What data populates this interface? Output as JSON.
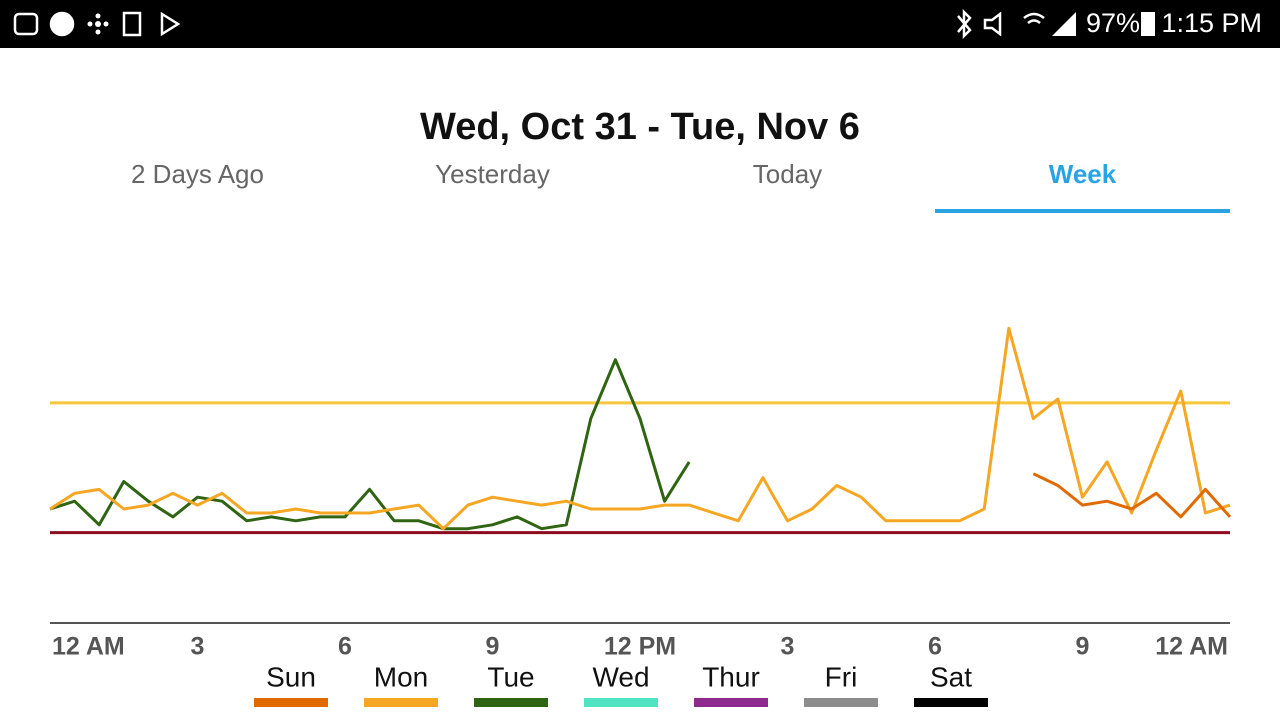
{
  "status_bar": {
    "battery": "97%",
    "time": "1:15 PM"
  },
  "header": {
    "title": "Wed, Oct 31 - Tue, Nov 6"
  },
  "tabs": [
    "2 Days Ago",
    "Yesterday",
    "Today",
    "Week"
  ],
  "active_tab": 3,
  "chart_data": {
    "type": "line",
    "x": [
      0,
      0.5,
      1,
      1.5,
      2,
      2.5,
      3,
      3.5,
      4,
      4.5,
      5,
      5.5,
      6,
      6.5,
      7,
      7.5,
      8,
      8.5,
      9,
      9.5,
      10,
      10.5,
      11,
      11.5,
      12,
      12.5,
      13,
      13.5,
      14,
      14.5,
      15,
      15.5,
      16,
      16.5,
      17,
      17.5,
      18,
      18.5,
      19,
      19.5,
      20,
      20.5,
      21,
      21.5,
      22,
      22.5,
      23,
      23.5,
      24
    ],
    "xlim": [
      0,
      24
    ],
    "xticks": [
      {
        "value": 0,
        "label": "12 AM"
      },
      3,
      6,
      9,
      {
        "value": 12,
        "label": "12 PM"
      },
      {
        "value": 15,
        "label": "3"
      },
      {
        "value": 18,
        "label": "6"
      },
      {
        "value": 21,
        "label": "9"
      },
      {
        "value": 24,
        "label": "12 AM"
      }
    ],
    "ylim": [
      0,
      100
    ],
    "reference_lines": [
      {
        "value": 56,
        "color": "#f7c63a"
      },
      {
        "value": 23,
        "color": "#8b0a1e"
      }
    ],
    "series": [
      {
        "name": "Sun",
        "color": "#e06a00",
        "values": [
          null,
          null,
          null,
          null,
          null,
          null,
          null,
          null,
          null,
          null,
          null,
          null,
          null,
          null,
          null,
          null,
          null,
          null,
          null,
          null,
          null,
          null,
          null,
          null,
          null,
          null,
          null,
          null,
          null,
          null,
          null,
          null,
          null,
          null,
          null,
          null,
          null,
          null,
          null,
          null,
          38,
          35,
          30,
          31,
          29,
          33,
          27,
          34,
          27
        ]
      },
      {
        "name": "Mon",
        "color": "#f5a623",
        "values": [
          29,
          33,
          34,
          29,
          30,
          33,
          30,
          33,
          28,
          28,
          29,
          28,
          28,
          28,
          29,
          30,
          24,
          30,
          32,
          31,
          30,
          31,
          29,
          29,
          29,
          30,
          30,
          28,
          26,
          37,
          26,
          29,
          35,
          32,
          26,
          26,
          26,
          26,
          29,
          75,
          52,
          57,
          32,
          41,
          28,
          44,
          59,
          28,
          30
        ]
      },
      {
        "name": "Tue",
        "color": "#2f6512",
        "values": [
          29,
          31,
          25,
          36,
          31,
          27,
          32,
          31,
          26,
          27,
          26,
          27,
          27,
          34,
          26,
          26,
          24,
          24,
          25,
          27,
          24,
          25,
          52,
          67,
          52,
          31,
          41,
          null,
          null,
          null,
          null,
          null,
          null,
          null,
          null,
          null,
          null,
          null,
          null,
          null,
          null,
          null,
          null,
          null,
          null,
          null,
          null,
          null,
          null
        ]
      },
      {
        "name": "Wed",
        "color": "#4fe3c2",
        "values": [
          null,
          null,
          null,
          null,
          null,
          null,
          null,
          null,
          null,
          null,
          null,
          null,
          null,
          null,
          null,
          null,
          null,
          null,
          null,
          null,
          null,
          null,
          null,
          null,
          null,
          null,
          null,
          null,
          null,
          null,
          null,
          null,
          null,
          null,
          null,
          null,
          null,
          null,
          null,
          null,
          null,
          null,
          null,
          null,
          null,
          null,
          null,
          null,
          null
        ]
      },
      {
        "name": "Thur",
        "color": "#8e2a8e",
        "values": [
          null,
          null,
          null,
          null,
          null,
          null,
          null,
          null,
          null,
          null,
          null,
          null,
          null,
          null,
          null,
          null,
          null,
          null,
          null,
          null,
          null,
          null,
          null,
          null,
          null,
          null,
          null,
          null,
          null,
          null,
          null,
          null,
          null,
          null,
          null,
          null,
          null,
          null,
          null,
          null,
          null,
          null,
          null,
          null,
          null,
          null,
          null,
          null,
          null
        ]
      },
      {
        "name": "Fri",
        "color": "#8c8c8c",
        "values": [
          null,
          null,
          null,
          null,
          null,
          null,
          null,
          null,
          null,
          null,
          null,
          null,
          null,
          null,
          null,
          null,
          null,
          null,
          null,
          null,
          null,
          null,
          null,
          null,
          null,
          null,
          null,
          null,
          null,
          null,
          null,
          null,
          null,
          null,
          null,
          null,
          null,
          null,
          null,
          null,
          null,
          null,
          null,
          null,
          null,
          null,
          null,
          null,
          null
        ]
      },
      {
        "name": "Sat",
        "color": "#000000",
        "values": [
          null,
          null,
          null,
          null,
          null,
          null,
          null,
          null,
          null,
          null,
          null,
          null,
          null,
          null,
          null,
          null,
          null,
          null,
          null,
          null,
          null,
          null,
          null,
          null,
          null,
          null,
          null,
          null,
          null,
          null,
          null,
          null,
          null,
          null,
          null,
          null,
          null,
          null,
          null,
          null,
          null,
          null,
          null,
          null,
          null,
          null,
          null,
          null,
          null
        ]
      }
    ]
  }
}
